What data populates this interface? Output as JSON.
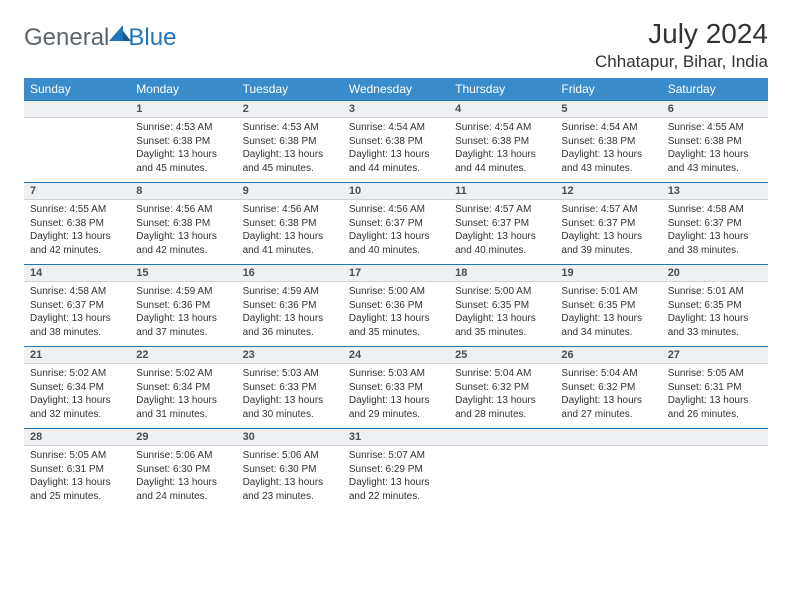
{
  "logo": {
    "text1": "General",
    "text2": "Blue"
  },
  "title": "July 2024",
  "location": "Chhatapur, Bihar, India",
  "accent_color": "#3a8bc9",
  "rule_color": "#2176b8",
  "daynum_bg": "#eef0f1",
  "text_color": "#333333",
  "logo_gray": "#5a6570",
  "logo_blue": "#2176b8",
  "weekdays": [
    "Sunday",
    "Monday",
    "Tuesday",
    "Wednesday",
    "Thursday",
    "Friday",
    "Saturday"
  ],
  "weeks": [
    [
      null,
      {
        "n": "1",
        "sr": "Sunrise: 4:53 AM",
        "ss": "Sunset: 6:38 PM",
        "d1": "Daylight: 13 hours",
        "d2": "and 45 minutes."
      },
      {
        "n": "2",
        "sr": "Sunrise: 4:53 AM",
        "ss": "Sunset: 6:38 PM",
        "d1": "Daylight: 13 hours",
        "d2": "and 45 minutes."
      },
      {
        "n": "3",
        "sr": "Sunrise: 4:54 AM",
        "ss": "Sunset: 6:38 PM",
        "d1": "Daylight: 13 hours",
        "d2": "and 44 minutes."
      },
      {
        "n": "4",
        "sr": "Sunrise: 4:54 AM",
        "ss": "Sunset: 6:38 PM",
        "d1": "Daylight: 13 hours",
        "d2": "and 44 minutes."
      },
      {
        "n": "5",
        "sr": "Sunrise: 4:54 AM",
        "ss": "Sunset: 6:38 PM",
        "d1": "Daylight: 13 hours",
        "d2": "and 43 minutes."
      },
      {
        "n": "6",
        "sr": "Sunrise: 4:55 AM",
        "ss": "Sunset: 6:38 PM",
        "d1": "Daylight: 13 hours",
        "d2": "and 43 minutes."
      }
    ],
    [
      {
        "n": "7",
        "sr": "Sunrise: 4:55 AM",
        "ss": "Sunset: 6:38 PM",
        "d1": "Daylight: 13 hours",
        "d2": "and 42 minutes."
      },
      {
        "n": "8",
        "sr": "Sunrise: 4:56 AM",
        "ss": "Sunset: 6:38 PM",
        "d1": "Daylight: 13 hours",
        "d2": "and 42 minutes."
      },
      {
        "n": "9",
        "sr": "Sunrise: 4:56 AM",
        "ss": "Sunset: 6:38 PM",
        "d1": "Daylight: 13 hours",
        "d2": "and 41 minutes."
      },
      {
        "n": "10",
        "sr": "Sunrise: 4:56 AM",
        "ss": "Sunset: 6:37 PM",
        "d1": "Daylight: 13 hours",
        "d2": "and 40 minutes."
      },
      {
        "n": "11",
        "sr": "Sunrise: 4:57 AM",
        "ss": "Sunset: 6:37 PM",
        "d1": "Daylight: 13 hours",
        "d2": "and 40 minutes."
      },
      {
        "n": "12",
        "sr": "Sunrise: 4:57 AM",
        "ss": "Sunset: 6:37 PM",
        "d1": "Daylight: 13 hours",
        "d2": "and 39 minutes."
      },
      {
        "n": "13",
        "sr": "Sunrise: 4:58 AM",
        "ss": "Sunset: 6:37 PM",
        "d1": "Daylight: 13 hours",
        "d2": "and 38 minutes."
      }
    ],
    [
      {
        "n": "14",
        "sr": "Sunrise: 4:58 AM",
        "ss": "Sunset: 6:37 PM",
        "d1": "Daylight: 13 hours",
        "d2": "and 38 minutes."
      },
      {
        "n": "15",
        "sr": "Sunrise: 4:59 AM",
        "ss": "Sunset: 6:36 PM",
        "d1": "Daylight: 13 hours",
        "d2": "and 37 minutes."
      },
      {
        "n": "16",
        "sr": "Sunrise: 4:59 AM",
        "ss": "Sunset: 6:36 PM",
        "d1": "Daylight: 13 hours",
        "d2": "and 36 minutes."
      },
      {
        "n": "17",
        "sr": "Sunrise: 5:00 AM",
        "ss": "Sunset: 6:36 PM",
        "d1": "Daylight: 13 hours",
        "d2": "and 35 minutes."
      },
      {
        "n": "18",
        "sr": "Sunrise: 5:00 AM",
        "ss": "Sunset: 6:35 PM",
        "d1": "Daylight: 13 hours",
        "d2": "and 35 minutes."
      },
      {
        "n": "19",
        "sr": "Sunrise: 5:01 AM",
        "ss": "Sunset: 6:35 PM",
        "d1": "Daylight: 13 hours",
        "d2": "and 34 minutes."
      },
      {
        "n": "20",
        "sr": "Sunrise: 5:01 AM",
        "ss": "Sunset: 6:35 PM",
        "d1": "Daylight: 13 hours",
        "d2": "and 33 minutes."
      }
    ],
    [
      {
        "n": "21",
        "sr": "Sunrise: 5:02 AM",
        "ss": "Sunset: 6:34 PM",
        "d1": "Daylight: 13 hours",
        "d2": "and 32 minutes."
      },
      {
        "n": "22",
        "sr": "Sunrise: 5:02 AM",
        "ss": "Sunset: 6:34 PM",
        "d1": "Daylight: 13 hours",
        "d2": "and 31 minutes."
      },
      {
        "n": "23",
        "sr": "Sunrise: 5:03 AM",
        "ss": "Sunset: 6:33 PM",
        "d1": "Daylight: 13 hours",
        "d2": "and 30 minutes."
      },
      {
        "n": "24",
        "sr": "Sunrise: 5:03 AM",
        "ss": "Sunset: 6:33 PM",
        "d1": "Daylight: 13 hours",
        "d2": "and 29 minutes."
      },
      {
        "n": "25",
        "sr": "Sunrise: 5:04 AM",
        "ss": "Sunset: 6:32 PM",
        "d1": "Daylight: 13 hours",
        "d2": "and 28 minutes."
      },
      {
        "n": "26",
        "sr": "Sunrise: 5:04 AM",
        "ss": "Sunset: 6:32 PM",
        "d1": "Daylight: 13 hours",
        "d2": "and 27 minutes."
      },
      {
        "n": "27",
        "sr": "Sunrise: 5:05 AM",
        "ss": "Sunset: 6:31 PM",
        "d1": "Daylight: 13 hours",
        "d2": "and 26 minutes."
      }
    ],
    [
      {
        "n": "28",
        "sr": "Sunrise: 5:05 AM",
        "ss": "Sunset: 6:31 PM",
        "d1": "Daylight: 13 hours",
        "d2": "and 25 minutes."
      },
      {
        "n": "29",
        "sr": "Sunrise: 5:06 AM",
        "ss": "Sunset: 6:30 PM",
        "d1": "Daylight: 13 hours",
        "d2": "and 24 minutes."
      },
      {
        "n": "30",
        "sr": "Sunrise: 5:06 AM",
        "ss": "Sunset: 6:30 PM",
        "d1": "Daylight: 13 hours",
        "d2": "and 23 minutes."
      },
      {
        "n": "31",
        "sr": "Sunrise: 5:07 AM",
        "ss": "Sunset: 6:29 PM",
        "d1": "Daylight: 13 hours",
        "d2": "and 22 minutes."
      },
      null,
      null,
      null
    ]
  ]
}
